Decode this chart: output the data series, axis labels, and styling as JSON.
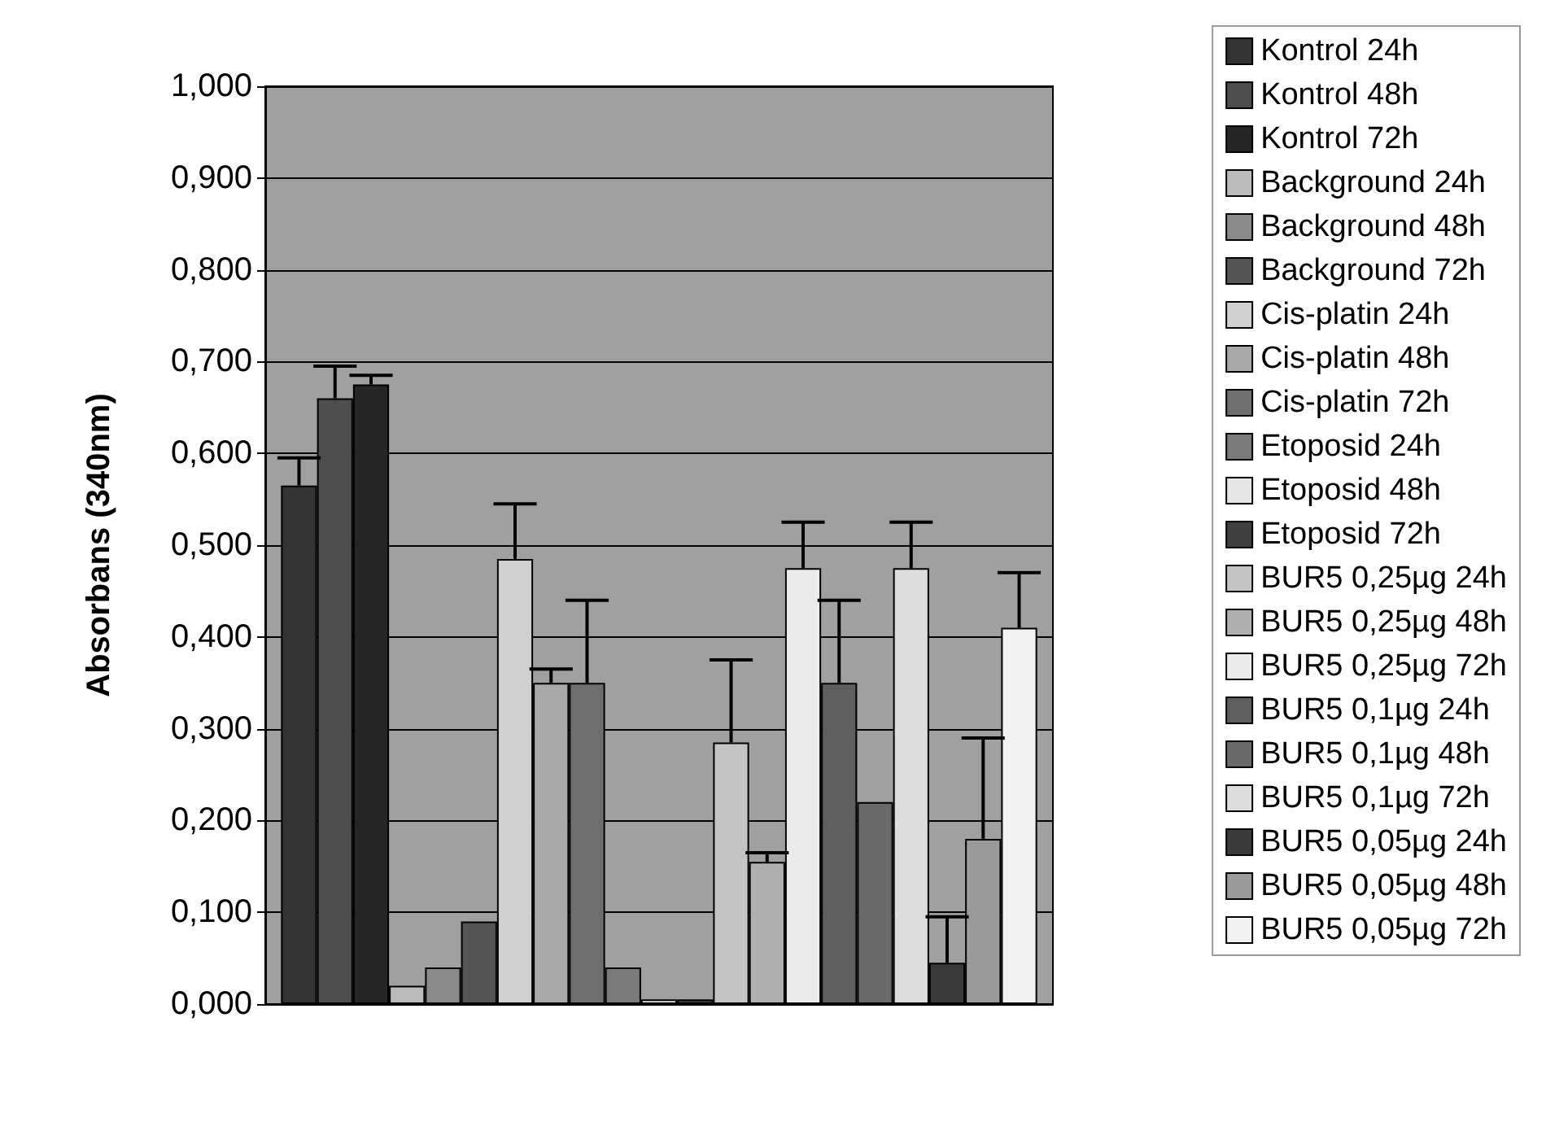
{
  "chart_data": {
    "type": "bar",
    "ylabel": "Absorbans (340nm)",
    "categories": [
      null
    ],
    "ylim": [
      0,
      1
    ],
    "yticks": [
      {
        "value": 0,
        "label": "0,000"
      },
      {
        "value": 0.1,
        "label": "0,100"
      },
      {
        "value": 0.2,
        "label": "0,200"
      },
      {
        "value": 0.3,
        "label": "0,300"
      },
      {
        "value": 0.4,
        "label": "0,400"
      },
      {
        "value": 0.5,
        "label": "0,500"
      },
      {
        "value": 0.6,
        "label": "0,600"
      },
      {
        "value": 0.7,
        "label": "0,700"
      },
      {
        "value": 0.8,
        "label": "0,800"
      },
      {
        "value": 0.9,
        "label": "0,900"
      },
      {
        "value": 1,
        "label": "1,000"
      }
    ],
    "grid": "y",
    "legend": "right",
    "series": [
      {
        "name": "Kontrol 24h",
        "color": "#333333",
        "values": [
          0.565
        ],
        "errors": [
          0.03
        ]
      },
      {
        "name": "Kontrol 48h",
        "color": "#4d4d4d",
        "values": [
          0.66
        ],
        "errors": [
          0.035
        ]
      },
      {
        "name": "Kontrol 72h",
        "color": "#262626",
        "values": [
          0.675
        ],
        "errors": [
          0.01
        ]
      },
      {
        "name": "Background 24h",
        "color": "#bbbbbb",
        "values": [
          0.02
        ],
        "errors": [
          null
        ]
      },
      {
        "name": "Background 48h",
        "color": "#8a8a8a",
        "values": [
          0.04
        ],
        "errors": [
          null
        ]
      },
      {
        "name": "Background 72h",
        "color": "#555555",
        "values": [
          0.09
        ],
        "errors": [
          null
        ]
      },
      {
        "name": "Cis-platin 24h",
        "color": "#d0d0d0",
        "values": [
          0.485
        ],
        "errors": [
          0.06
        ]
      },
      {
        "name": "Cis-platin 48h",
        "color": "#a8a8a8",
        "values": [
          0.35
        ],
        "errors": [
          0.015
        ]
      },
      {
        "name": "Cis-platin 72h",
        "color": "#6e6e6e",
        "values": [
          0.35
        ],
        "errors": [
          0.09
        ]
      },
      {
        "name": "Etoposid 24h",
        "color": "#7a7a7a",
        "values": [
          0.04
        ],
        "errors": [
          null
        ]
      },
      {
        "name": "Etoposid 48h",
        "color": "#e6e6e6",
        "values": [
          0.005
        ],
        "errors": [
          null
        ]
      },
      {
        "name": "Etoposid 72h",
        "color": "#404040",
        "values": [
          0.005
        ],
        "errors": [
          null
        ]
      },
      {
        "name": "BUR5 0,25µg 24h",
        "color": "#c4c4c4",
        "values": [
          0.285
        ],
        "errors": [
          0.09
        ]
      },
      {
        "name": "BUR5 0,25µg 48h",
        "color": "#b0b0b0",
        "values": [
          0.155
        ],
        "errors": [
          0.01
        ]
      },
      {
        "name": "BUR5 0,25µg 72h",
        "color": "#ebebeb",
        "values": [
          0.475
        ],
        "errors": [
          0.05
        ]
      },
      {
        "name": "BUR5 0,1µg 24h",
        "color": "#5e5e5e",
        "values": [
          0.35
        ],
        "errors": [
          0.09
        ]
      },
      {
        "name": "BUR5 0,1µg 48h",
        "color": "#6a6a6a",
        "values": [
          0.22
        ],
        "errors": [
          null
        ]
      },
      {
        "name": "BUR5 0,1µg 72h",
        "color": "#dddddd",
        "values": [
          0.475
        ],
        "errors": [
          0.05
        ]
      },
      {
        "name": "BUR5 0,05µg 24h",
        "color": "#3a3a3a",
        "values": [
          0.045
        ],
        "errors": [
          0.05
        ]
      },
      {
        "name": "BUR5 0,05µg 48h",
        "color": "#9a9a9a",
        "values": [
          0.18
        ],
        "errors": [
          0.11
        ]
      },
      {
        "name": "BUR5 0,05µg 72h",
        "color": "#f2f2f2",
        "values": [
          0.41
        ],
        "errors": [
          0.06
        ]
      }
    ]
  }
}
